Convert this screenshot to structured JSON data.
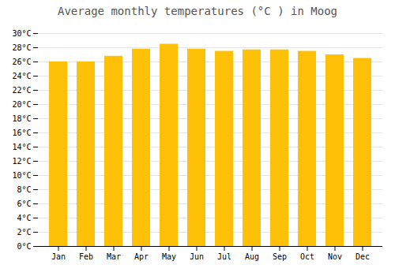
{
  "chart_data": {
    "type": "bar",
    "title": "Average monthly temperatures (°C ) in Moog",
    "categories": [
      "Jan",
      "Feb",
      "Mar",
      "Apr",
      "May",
      "Jun",
      "Jul",
      "Aug",
      "Sep",
      "Oct",
      "Nov",
      "Dec"
    ],
    "values": [
      26.0,
      26.0,
      26.8,
      27.8,
      28.5,
      27.8,
      27.5,
      27.7,
      27.7,
      27.5,
      27.0,
      26.5
    ],
    "color": "#FFC107",
    "ylim": [
      0,
      30
    ],
    "yticks": [
      {
        "value": 0,
        "label": "0°C"
      },
      {
        "value": 2,
        "label": "2°C"
      },
      {
        "value": 4,
        "label": "4°C"
      },
      {
        "value": 6,
        "label": "6°C"
      },
      {
        "value": 8,
        "label": "8°C"
      },
      {
        "value": 10,
        "label": "10°C"
      },
      {
        "value": 12,
        "label": "12°C"
      },
      {
        "value": 14,
        "label": "14°C"
      },
      {
        "value": 16,
        "label": "16°C"
      },
      {
        "value": 18,
        "label": "18°C"
      },
      {
        "value": 20,
        "label": "20°C"
      },
      {
        "value": 22,
        "label": "22°C"
      },
      {
        "value": 24,
        "label": "24°C"
      },
      {
        "value": 26,
        "label": "26°C"
      },
      {
        "value": 28,
        "label": "28°C"
      },
      {
        "value": 30,
        "label": "30°C"
      }
    ],
    "grid": true
  }
}
